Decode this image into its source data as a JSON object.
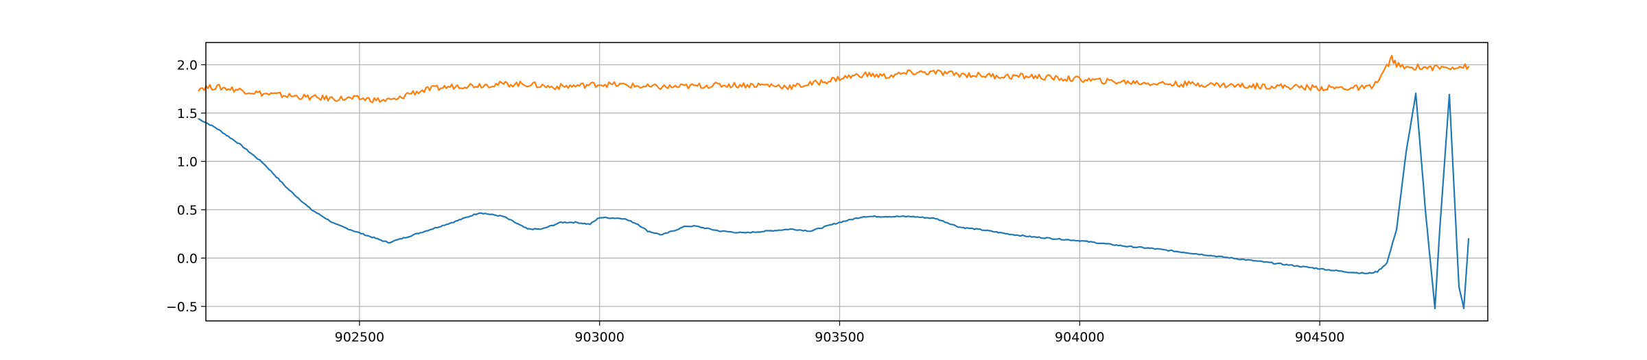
{
  "chart_data": {
    "type": "line",
    "title": "",
    "xlabel": "",
    "ylabel": "",
    "xlim": [
      902180,
      904850
    ],
    "ylim": [
      -0.65,
      2.23
    ],
    "grid": true,
    "legend": "none",
    "x_ticks": [
      902500,
      903000,
      903500,
      904000,
      904500
    ],
    "y_ticks": [
      -0.5,
      0.0,
      0.5,
      1.0,
      1.5,
      2.0
    ],
    "x_tick_labels": [
      "902500",
      "903000",
      "903500",
      "904000",
      "904500"
    ],
    "y_tick_labels": [
      "−0.5",
      "0.0",
      "0.5",
      "1.0",
      "1.5",
      "2.0"
    ],
    "series": [
      {
        "color": "#1f77b4",
        "x": [
          902165,
          902200,
          902250,
          902300,
          902350,
          902400,
          902450,
          902500,
          902530,
          902560,
          902600,
          902650,
          902700,
          902750,
          902800,
          902850,
          902880,
          902920,
          902950,
          902980,
          903000,
          903050,
          903080,
          903100,
          903130,
          903180,
          903200,
          903250,
          903300,
          903350,
          903400,
          903440,
          903500,
          903550,
          903600,
          903650,
          903700,
          903750,
          903800,
          903850,
          903900,
          903950,
          904000,
          904050,
          904100,
          904150,
          904200,
          904250,
          904300,
          904350,
          904400,
          904450,
          904500,
          904550,
          904600,
          904620,
          904640,
          904660,
          904680,
          904700,
          904720,
          904740,
          904750,
          904770,
          904790,
          904800,
          904810
        ],
        "values": [
          1.44,
          1.35,
          1.18,
          0.98,
          0.72,
          0.5,
          0.35,
          0.26,
          0.21,
          0.16,
          0.22,
          0.3,
          0.38,
          0.47,
          0.43,
          0.3,
          0.3,
          0.37,
          0.37,
          0.35,
          0.42,
          0.41,
          0.35,
          0.28,
          0.24,
          0.33,
          0.33,
          0.28,
          0.26,
          0.28,
          0.3,
          0.28,
          0.37,
          0.43,
          0.43,
          0.43,
          0.41,
          0.32,
          0.29,
          0.25,
          0.22,
          0.2,
          0.18,
          0.15,
          0.12,
          0.1,
          0.07,
          0.04,
          0.01,
          -0.02,
          -0.05,
          -0.08,
          -0.11,
          -0.14,
          -0.16,
          -0.14,
          -0.05,
          0.3,
          1.1,
          1.7,
          0.5,
          -0.52,
          0.3,
          1.69,
          -0.3,
          -0.52,
          0.2
        ]
      },
      {
        "color": "#ff7f0e",
        "x": [
          902165,
          902200,
          902250,
          902300,
          902350,
          902400,
          902450,
          902500,
          902550,
          902580,
          902600,
          902650,
          902700,
          902750,
          902800,
          902850,
          902900,
          902950,
          903000,
          903050,
          903100,
          903150,
          903200,
          903250,
          903300,
          903350,
          903400,
          903450,
          903500,
          903550,
          903600,
          903650,
          903700,
          903750,
          903800,
          903850,
          903900,
          903950,
          904000,
          904050,
          904100,
          904150,
          904200,
          904250,
          904300,
          904350,
          904400,
          904450,
          904500,
          904550,
          904600,
          904620,
          904640,
          904650,
          904660,
          904680,
          904700,
          904720,
          904750,
          904780,
          904810
        ],
        "values": [
          1.76,
          1.77,
          1.74,
          1.7,
          1.68,
          1.66,
          1.65,
          1.65,
          1.63,
          1.64,
          1.7,
          1.75,
          1.78,
          1.79,
          1.8,
          1.8,
          1.77,
          1.78,
          1.8,
          1.79,
          1.77,
          1.77,
          1.78,
          1.79,
          1.79,
          1.79,
          1.77,
          1.81,
          1.86,
          1.9,
          1.88,
          1.92,
          1.92,
          1.9,
          1.89,
          1.88,
          1.88,
          1.86,
          1.85,
          1.83,
          1.82,
          1.81,
          1.8,
          1.8,
          1.79,
          1.78,
          1.78,
          1.77,
          1.76,
          1.76,
          1.76,
          1.82,
          1.98,
          2.07,
          2.0,
          1.96,
          1.98,
          1.97,
          1.97,
          1.98,
          1.98
        ]
      }
    ]
  }
}
